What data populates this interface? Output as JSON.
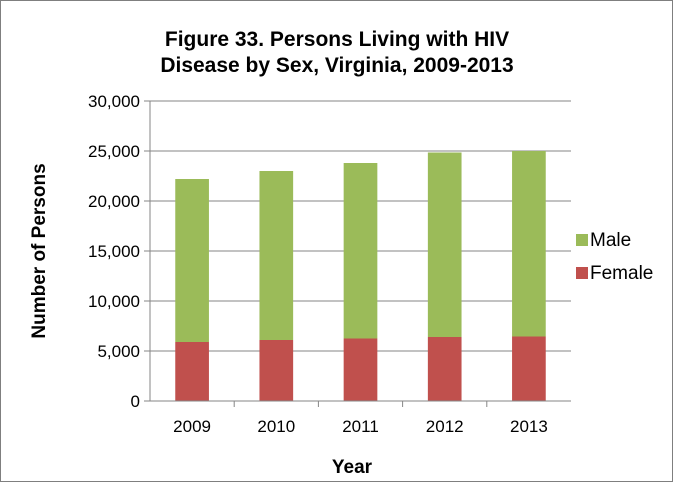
{
  "chart_data": {
    "type": "bar",
    "stacked": true,
    "title_lines": [
      "Figure 33. Persons Living with HIV",
      "Disease by Sex, Virginia, 2009-2013"
    ],
    "xlabel": "Year",
    "ylabel": "Number of Persons",
    "categories": [
      "2009",
      "2010",
      "2011",
      "2012",
      "2013"
    ],
    "y_ticks": [
      "0",
      "5,000",
      "10,000",
      "15,000",
      "20,000",
      "25,000",
      "30,000"
    ],
    "ylim": [
      0,
      30000
    ],
    "grid": true,
    "legend_position": "right",
    "series": [
      {
        "name": "Female",
        "color": "#c0504d",
        "values": [
          5900,
          6100,
          6250,
          6400,
          6450
        ]
      },
      {
        "name": "Male",
        "color": "#9bbb59",
        "values": [
          16300,
          16900,
          17550,
          18450,
          18550
        ]
      }
    ],
    "legend_order": [
      "Male",
      "Female"
    ]
  }
}
